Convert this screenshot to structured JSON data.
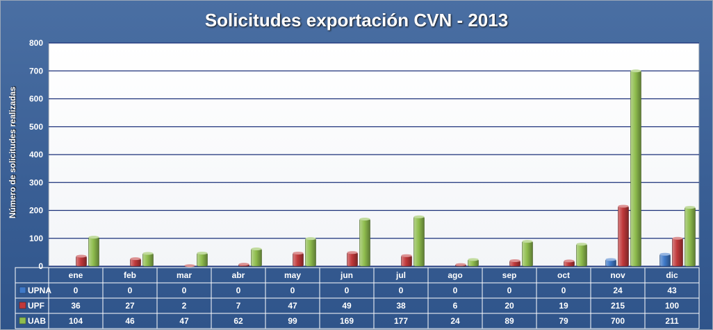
{
  "chart_data": {
    "type": "bar",
    "title": "Solicitudes exportación CVN - 2013",
    "ylabel": "Número de solicitudes realizadas",
    "xlabel": "",
    "ylim": [
      0,
      800
    ],
    "yticks": [
      0,
      100,
      200,
      300,
      400,
      500,
      600,
      700,
      800
    ],
    "grid": true,
    "legend": "data-table-left",
    "categories": [
      "ene",
      "feb",
      "mar",
      "abr",
      "may",
      "jun",
      "jul",
      "ago",
      "sep",
      "oct",
      "nov",
      "dic"
    ],
    "series": [
      {
        "name": "UPNA",
        "color": "#3f79c8",
        "values": [
          0,
          0,
          0,
          0,
          0,
          0,
          0,
          0,
          0,
          0,
          24,
          43
        ]
      },
      {
        "name": "UPF",
        "color": "#c0393b",
        "values": [
          36,
          27,
          2,
          7,
          47,
          49,
          38,
          6,
          20,
          19,
          215,
          100
        ]
      },
      {
        "name": "UAB",
        "color": "#8fbd4e",
        "values": [
          104,
          46,
          47,
          62,
          99,
          169,
          177,
          24,
          89,
          79,
          700,
          211
        ]
      }
    ]
  }
}
